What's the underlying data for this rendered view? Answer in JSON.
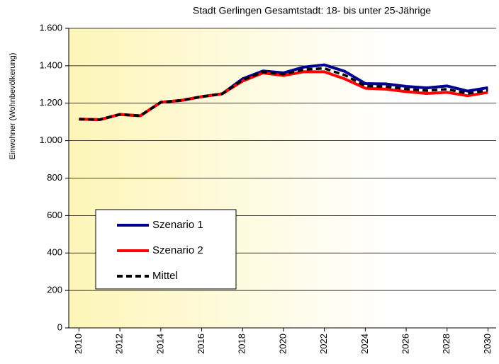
{
  "chart_data": {
    "type": "line",
    "title": "Stadt Gerlingen  Gesamtstadt:  18- bis unter 25-Jährige",
    "y_label": "Einwohner (Wohnbevölkerung)",
    "x": [
      2010,
      2011,
      2012,
      2013,
      2014,
      2015,
      2016,
      2017,
      2018,
      2019,
      2020,
      2021,
      2022,
      2023,
      2024,
      2025,
      2026,
      2027,
      2028,
      2029,
      2030
    ],
    "xlim": [
      2009.5,
      2030.4
    ],
    "xticks": [
      2010,
      2012,
      2014,
      2016,
      2018,
      2020,
      2022,
      2024,
      2026,
      2028,
      2030
    ],
    "ylim": [
      0,
      1600
    ],
    "yticks": [
      0,
      200,
      400,
      600,
      800,
      {
        "value": 1000,
        "label": "1.000"
      },
      {
        "value": 1200,
        "label": "1.200"
      },
      {
        "value": 1400,
        "label": "1.400"
      },
      {
        "value": 1600,
        "label": "1.600"
      }
    ],
    "grid": true,
    "legend": "lower left",
    "series": [
      {
        "name": "Szenario 1",
        "color": "#000090",
        "values": [
          1115,
          1112,
          1140,
          1133,
          1205,
          1215,
          1235,
          1250,
          1330,
          1372,
          1362,
          1393,
          1405,
          1370,
          1305,
          1303,
          1290,
          1282,
          1292,
          1265,
          1283
        ]
      },
      {
        "name": "Szenario 2",
        "color": "#ff0000",
        "values": [
          1115,
          1112,
          1140,
          1133,
          1205,
          1215,
          1235,
          1250,
          1318,
          1362,
          1348,
          1368,
          1368,
          1330,
          1280,
          1275,
          1262,
          1252,
          1258,
          1240,
          1258
        ]
      },
      {
        "name": "Mittel",
        "color": "#000000",
        "dashed": true,
        "values": [
          1115,
          1112,
          1140,
          1133,
          1205,
          1215,
          1235,
          1250,
          1324,
          1367,
          1355,
          1380,
          1386,
          1350,
          1292,
          1289,
          1276,
          1267,
          1275,
          1252,
          1270
        ]
      }
    ]
  }
}
